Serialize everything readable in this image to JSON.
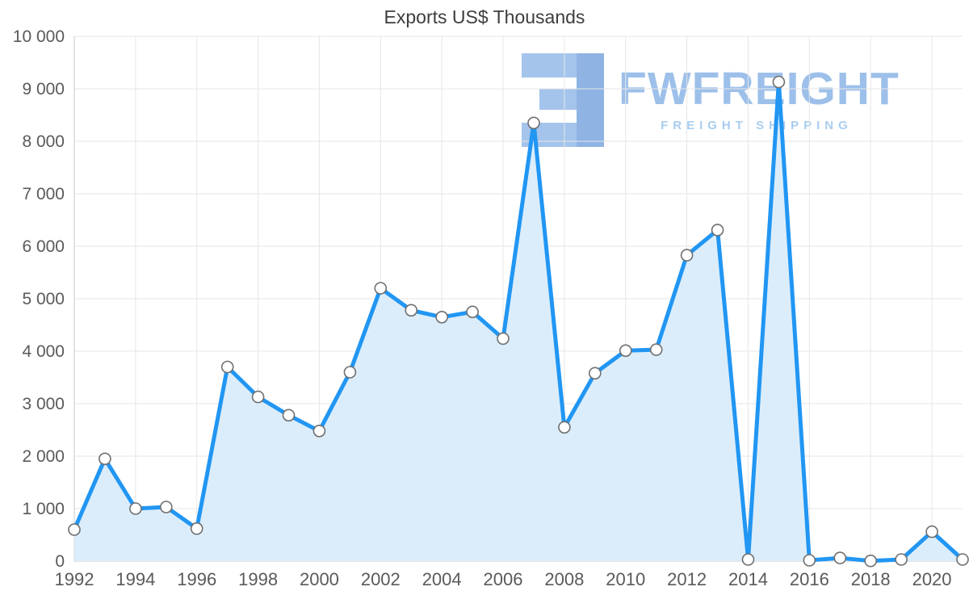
{
  "chart_data": {
    "type": "area",
    "title": "Exports US$ Thousands",
    "xlabel": "",
    "ylabel": "",
    "x": [
      1992,
      1993,
      1994,
      1995,
      1996,
      1997,
      1998,
      1999,
      2000,
      2001,
      2002,
      2003,
      2004,
      2005,
      2006,
      2007,
      2008,
      2009,
      2010,
      2011,
      2012,
      2013,
      2014,
      2015,
      2016,
      2017,
      2018,
      2019,
      2020,
      2021
    ],
    "values": [
      600,
      1950,
      1000,
      1030,
      620,
      3700,
      3130,
      2780,
      2480,
      3600,
      5200,
      4780,
      4650,
      4750,
      4240,
      8350,
      2550,
      3580,
      4010,
      4030,
      5830,
      6310,
      30,
      9130,
      15,
      60,
      5,
      30,
      560,
      30
    ],
    "ylim": [
      0,
      10000
    ],
    "xlim": [
      1992,
      2021
    ],
    "grid": true,
    "legend": "none",
    "y_ticks": [
      {
        "value": 0,
        "label": "0"
      },
      {
        "value": 1000,
        "label": "1 000"
      },
      {
        "value": 2000,
        "label": "2 000"
      },
      {
        "value": 3000,
        "label": "3 000"
      },
      {
        "value": 4000,
        "label": "4 000"
      },
      {
        "value": 5000,
        "label": "5 000"
      },
      {
        "value": 6000,
        "label": "6 000"
      },
      {
        "value": 7000,
        "label": "7 000"
      },
      {
        "value": 8000,
        "label": "8 000"
      },
      {
        "value": 9000,
        "label": "9 000"
      },
      {
        "value": 10000,
        "label": "10 000"
      }
    ],
    "x_ticks": [
      {
        "value": 1992,
        "label": "1992"
      },
      {
        "value": 1994,
        "label": "1994"
      },
      {
        "value": 1996,
        "label": "1996"
      },
      {
        "value": 1998,
        "label": "1998"
      },
      {
        "value": 2000,
        "label": "2000"
      },
      {
        "value": 2002,
        "label": "2002"
      },
      {
        "value": 2004,
        "label": "2004"
      },
      {
        "value": 2006,
        "label": "2006"
      },
      {
        "value": 2008,
        "label": "2008"
      },
      {
        "value": 2010,
        "label": "2010"
      },
      {
        "value": 2012,
        "label": "2012"
      },
      {
        "value": 2014,
        "label": "2014"
      },
      {
        "value": 2016,
        "label": "2016"
      },
      {
        "value": 2018,
        "label": "2018"
      },
      {
        "value": 2020,
        "label": "2020"
      }
    ],
    "line_color": "#2196f3",
    "fill_color": "#dbedfb",
    "marker_fill": "#ffffff",
    "marker_stroke": "#6f6f6f",
    "grid_color": "#e6e6e6",
    "axis_color": "#c9c9c9",
    "label_color": "#5a5a5a",
    "title_color": "#3d3d3d"
  },
  "watermark": {
    "brand": "FWFREIGHT",
    "subtitle": "FREIGHT SHIPPING",
    "brand_color": "#9dc0ea",
    "subtitle_color": "#a9cdf0",
    "logo_color": "#a4c4ec",
    "logo_color_dark": "#8fb4e4"
  }
}
